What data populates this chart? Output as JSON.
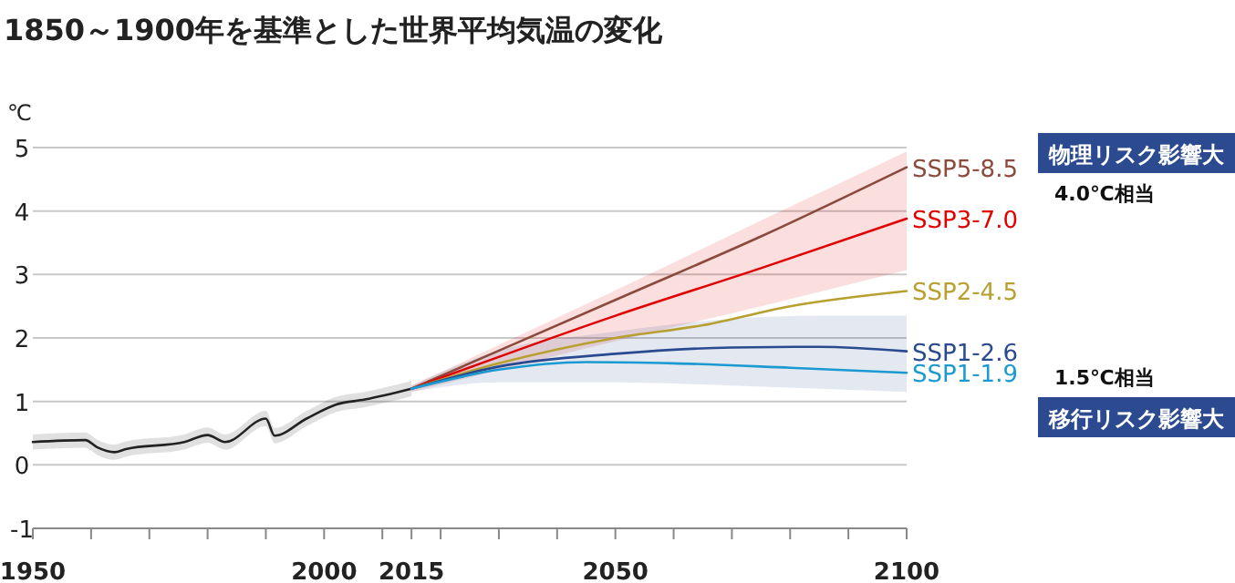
{
  "chart_data": {
    "type": "line",
    "title": "1850～1900年を基準とした世界平均気温の変化",
    "ylabel": "℃",
    "xlim": [
      1950,
      2100
    ],
    "xticks": [
      1950,
      {
        "value": 1960,
        "label": null
      },
      {
        "value": 1970,
        "label": null
      },
      {
        "value": 1980,
        "label": null
      },
      {
        "value": 1990,
        "label": null
      },
      2000,
      {
        "value": 2010,
        "label": null
      },
      2015,
      {
        "value": 2020,
        "label": null
      },
      {
        "value": 2030,
        "label": null
      },
      {
        "value": 2040,
        "label": null
      },
      2050,
      {
        "value": 2060,
        "label": null
      },
      {
        "value": 2070,
        "label": null
      },
      {
        "value": 2080,
        "label": null
      },
      {
        "value": 2090,
        "label": null
      },
      2100
    ],
    "ylim": [
      -1,
      5
    ],
    "yticks": [
      -1,
      0,
      1,
      2,
      3,
      4,
      5
    ],
    "grid": "y",
    "marker": "none",
    "line_style": "solid",
    "series": [
      {
        "color": "#222222",
        "x": [
          1950,
          1959,
          1961,
          1964,
          1966,
          1976,
          1980,
          1983,
          1990,
          1991.5,
          1997,
          2002,
          2007,
          2015
        ],
        "values": [
          0.36,
          0.39,
          0.28,
          0.2,
          0.25,
          0.36,
          0.47,
          0.36,
          0.73,
          0.46,
          0.73,
          0.95,
          1.03,
          1.2
        ],
        "lower": [
          0.24,
          0.27,
          0.16,
          0.08,
          0.13,
          0.24,
          0.35,
          0.24,
          0.61,
          0.34,
          0.61,
          0.83,
          0.91,
          1.08
        ],
        "upper": [
          0.48,
          0.51,
          0.4,
          0.32,
          0.37,
          0.48,
          0.59,
          0.48,
          0.85,
          0.58,
          0.85,
          1.07,
          1.15,
          1.32
        ]
      },
      {
        "name": "SSP5-8.5",
        "color": "#8b4a3c",
        "x": [
          2015,
          2050,
          2075,
          2100
        ],
        "values": [
          1.2,
          2.6,
          3.6,
          4.69
        ]
      },
      {
        "name": "SSP3-7.0",
        "color": "#e00000",
        "x": [
          2015,
          2050,
          2075,
          2100
        ],
        "values": [
          1.2,
          2.35,
          3.1,
          3.88
        ],
        "lower": [
          1.15,
          1.95,
          2.5,
          3.07
        ],
        "upper": [
          1.25,
          2.75,
          3.85,
          4.94
        ]
      },
      {
        "name": "SSP2-4.5",
        "color": "#b8a030",
        "x": [
          2015,
          2030,
          2050,
          2065,
          2080,
          2100
        ],
        "values": [
          1.2,
          1.6,
          2.0,
          2.2,
          2.5,
          2.74
        ]
      },
      {
        "name": "SSP1-2.6",
        "color": "#2a4a90",
        "x": [
          2015,
          2030,
          2050,
          2070,
          2085,
          2100
        ],
        "values": [
          1.2,
          1.55,
          1.75,
          1.85,
          1.86,
          1.79
        ],
        "lower": [
          1.15,
          1.3,
          1.3,
          1.25,
          1.2,
          1.15
        ],
        "upper": [
          1.25,
          1.8,
          2.1,
          2.3,
          2.35,
          2.35
        ]
      },
      {
        "name": "SSP1-1.9",
        "color": "#1a9ad0",
        "x": [
          2015,
          2030,
          2045,
          2060,
          2080,
          2100
        ],
        "values": [
          1.2,
          1.5,
          1.62,
          1.6,
          1.53,
          1.45
        ]
      }
    ],
    "annotations": [
      "物理リスク影響大",
      "4.0℃相当",
      "1.5℃相当",
      "移行リスク影響大"
    ]
  }
}
